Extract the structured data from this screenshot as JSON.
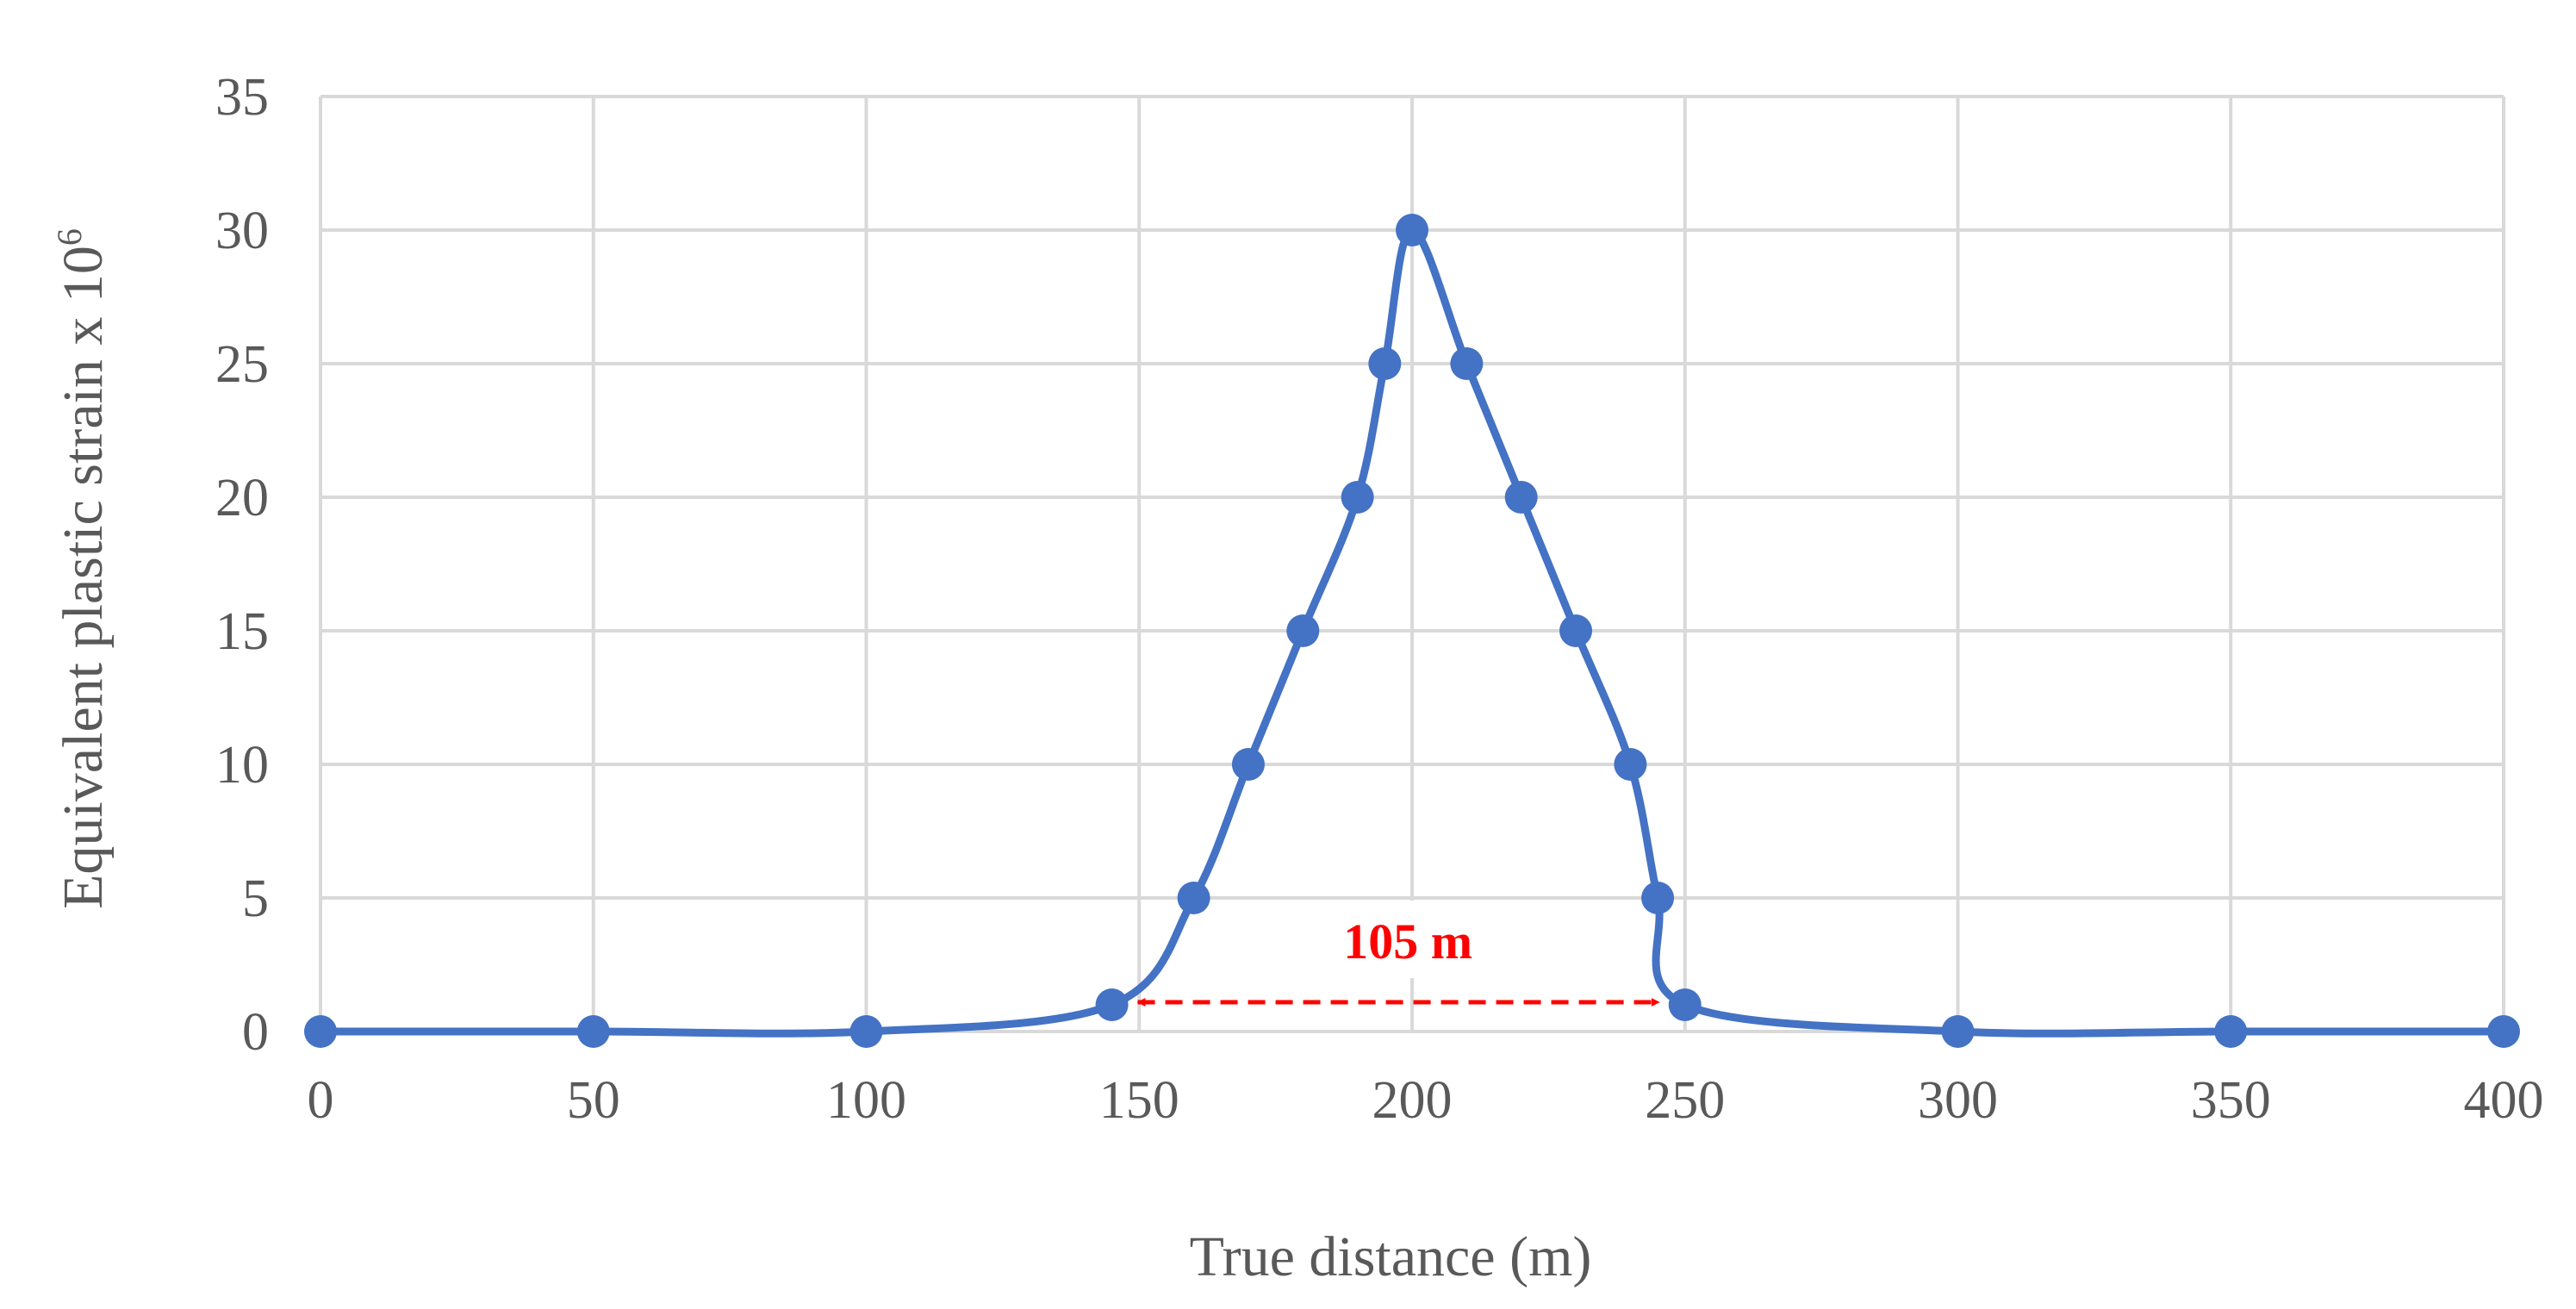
{
  "chart_data": {
    "type": "line",
    "x": [
      0,
      50,
      100,
      145,
      160,
      170,
      180,
      190,
      195,
      200,
      210,
      220,
      230,
      240,
      245,
      250,
      300,
      350,
      400
    ],
    "series": [
      {
        "values": [
          0,
          0,
          0,
          1,
          5,
          10,
          15,
          20,
          25,
          30,
          25,
          20,
          15,
          10,
          5,
          1,
          0,
          0,
          0
        ],
        "color": "#4472c4"
      }
    ],
    "xlabel": "True distance (m)",
    "ylabel_main": "Equivalent plastic strain x 10",
    "ylabel_sup": "6",
    "xlim": [
      0,
      400
    ],
    "ylim": [
      0,
      35
    ],
    "xticks": [
      "0",
      "50",
      "100",
      "150",
      "200",
      "250",
      "300",
      "350",
      "400"
    ],
    "yticks": [
      "0",
      "5",
      "10",
      "15",
      "20",
      "25",
      "30",
      "35"
    ],
    "grid": true,
    "annotation": {
      "text": "105 m",
      "x_start": 145,
      "x_end": 250,
      "y": 1,
      "color": "#ff0000"
    }
  }
}
